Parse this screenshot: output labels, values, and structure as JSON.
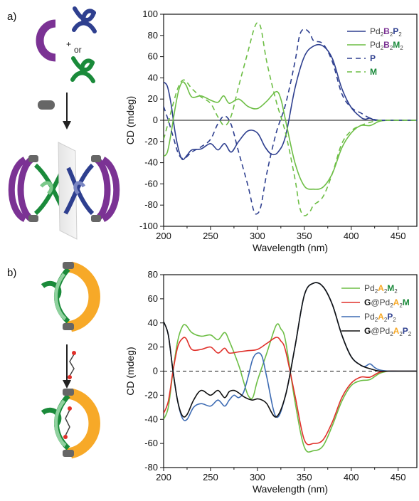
{
  "figure": {
    "panel_a": "a)",
    "panel_b": "b)",
    "schematic_or": "or",
    "schematic_plus": "+"
  },
  "colors": {
    "navy": "#2e3f8f",
    "green": "#6dbe45",
    "purple": "#7b3294",
    "dark_green": "#1a8a3a",
    "orange": "#f7a928",
    "red": "#e0302a",
    "blue": "#3d6bb3",
    "black": "#111111",
    "grey": "#888888"
  },
  "chart_data": [
    {
      "type": "line",
      "xlabel": "Wavelength (nm)",
      "ylabel": "CD (mdeg)",
      "xlim": [
        200,
        470
      ],
      "ylim": [
        -100,
        100
      ],
      "xticks": [
        200,
        250,
        300,
        350,
        400,
        450
      ],
      "yticks": [
        100,
        80,
        60,
        40,
        20,
        0,
        -20,
        -40,
        -60,
        -80,
        -100
      ],
      "zero_line": "solid",
      "legend": [
        {
          "parts": [
            [
              "Pd",
              "#444"
            ],
            [
              "2",
              "#444",
              "sub"
            ],
            [
              "B",
              "#7b3294",
              "bold"
            ],
            [
              "2",
              "#444",
              "sub"
            ],
            [
              "P",
              "#2e3f8f",
              "bold"
            ],
            [
              "2",
              "#444",
              "sub"
            ]
          ]
        },
        {
          "parts": [
            [
              "Pd",
              "#444"
            ],
            [
              "2",
              "#444",
              "sub"
            ],
            [
              "B",
              "#7b3294",
              "bold"
            ],
            [
              "2",
              "#444",
              "sub"
            ],
            [
              "M",
              "#1a8a3a",
              "bold"
            ],
            [
              "2",
              "#444",
              "sub"
            ]
          ]
        },
        {
          "parts": [
            [
              "P",
              "#2e3f8f",
              "bold"
            ]
          ]
        },
        {
          "parts": [
            [
              "M",
              "#1a8a3a",
              "bold"
            ]
          ]
        }
      ],
      "series": [
        {
          "color": "#2e3f8f",
          "dash": false,
          "x": [
            200,
            204,
            208,
            212,
            216,
            220,
            225,
            230,
            240,
            250,
            258,
            265,
            272,
            280,
            290,
            300,
            308,
            315,
            322,
            330,
            340,
            350,
            360,
            370,
            380,
            390,
            400,
            410,
            415,
            420,
            425,
            430,
            440,
            450,
            470
          ],
          "y": [
            36,
            32,
            15,
            -10,
            -28,
            -37,
            -33,
            -28,
            -27,
            -22,
            -28,
            -22,
            -30,
            -20,
            -10,
            -12,
            -25,
            -32,
            -30,
            -15,
            30,
            60,
            70,
            70,
            58,
            30,
            12,
            3,
            1,
            2,
            0,
            0,
            0,
            0,
            0
          ]
        },
        {
          "color": "#6dbe45",
          "dash": false,
          "x": [
            200,
            204,
            208,
            212,
            216,
            220,
            224,
            230,
            240,
            250,
            258,
            264,
            270,
            280,
            290,
            300,
            310,
            320,
            325,
            330,
            340,
            350,
            360,
            370,
            380,
            390,
            400,
            410,
            420,
            430,
            440,
            450,
            470
          ],
          "y": [
            -34,
            -30,
            -12,
            10,
            28,
            36,
            33,
            22,
            23,
            19,
            17,
            23,
            16,
            20,
            13,
            11,
            18,
            27,
            20,
            0,
            -40,
            -62,
            -65,
            -63,
            -50,
            -26,
            -12,
            -5,
            -5,
            -1,
            0,
            0,
            0
          ]
        },
        {
          "color": "#2e3f8f",
          "dash": true,
          "x": [
            200,
            205,
            210,
            216,
            222,
            230,
            240,
            250,
            258,
            265,
            272,
            280,
            290,
            296,
            300,
            304,
            310,
            320,
            330,
            340,
            345,
            350,
            356,
            360,
            370,
            380,
            390,
            400,
            410,
            420,
            430,
            440,
            450,
            470
          ],
          "y": [
            13,
            0,
            -15,
            -32,
            -36,
            -30,
            -25,
            -18,
            -3,
            4,
            -4,
            -30,
            -62,
            -85,
            -88,
            -80,
            -50,
            -12,
            15,
            55,
            80,
            86,
            82,
            75,
            72,
            55,
            25,
            12,
            7,
            2,
            0,
            0,
            0,
            0
          ]
        },
        {
          "color": "#6dbe45",
          "dash": true,
          "x": [
            200,
            205,
            210,
            216,
            222,
            230,
            240,
            250,
            258,
            265,
            272,
            280,
            290,
            296,
            300,
            304,
            310,
            320,
            330,
            340,
            345,
            350,
            356,
            360,
            370,
            380,
            390,
            400,
            410,
            420,
            430,
            440,
            450,
            470
          ],
          "y": [
            -18,
            -2,
            15,
            32,
            38,
            30,
            22,
            16,
            3,
            -5,
            4,
            32,
            65,
            85,
            92,
            86,
            55,
            18,
            -12,
            -55,
            -82,
            -90,
            -86,
            -80,
            -72,
            -50,
            -22,
            -10,
            -5,
            -2,
            0,
            0,
            0,
            0
          ]
        }
      ]
    },
    {
      "type": "line",
      "xlabel": "Wavelength (nm)",
      "ylabel": "CD (mdeg)",
      "xlim": [
        200,
        470
      ],
      "ylim": [
        -80,
        80
      ],
      "xticks": [
        200,
        250,
        300,
        350,
        400,
        450
      ],
      "yticks": [
        80,
        60,
        40,
        20,
        0,
        -20,
        -40,
        -60,
        -80
      ],
      "zero_line": "dashed",
      "legend": [
        {
          "parts": [
            [
              "Pd",
              "#444"
            ],
            [
              "2",
              "#444",
              "sub"
            ],
            [
              "A",
              "#f7a928",
              "bold"
            ],
            [
              "2",
              "#444",
              "sub"
            ],
            [
              "M",
              "#1a8a3a",
              "bold"
            ],
            [
              "2",
              "#444",
              "sub"
            ]
          ]
        },
        {
          "parts": [
            [
              "G",
              "#111",
              "bold"
            ],
            [
              "@Pd",
              "#444"
            ],
            [
              "2",
              "#444",
              "sub"
            ],
            [
              "A",
              "#f7a928",
              "bold"
            ],
            [
              "2",
              "#444",
              "sub"
            ],
            [
              "M",
              "#1a8a3a",
              "bold"
            ]
          ]
        },
        {
          "parts": [
            [
              "Pd",
              "#444"
            ],
            [
              "2",
              "#444",
              "sub"
            ],
            [
              "A",
              "#f7a928",
              "bold"
            ],
            [
              "2",
              "#444",
              "sub"
            ],
            [
              "P",
              "#2e3f8f",
              "bold"
            ],
            [
              "2",
              "#444",
              "sub"
            ]
          ]
        },
        {
          "parts": [
            [
              "G",
              "#111",
              "bold"
            ],
            [
              "@Pd",
              "#444"
            ],
            [
              "2",
              "#444",
              "sub"
            ],
            [
              "A",
              "#f7a928",
              "bold"
            ],
            [
              "2",
              "#444",
              "sub"
            ],
            [
              "P",
              "#2e3f8f",
              "bold"
            ],
            [
              "2",
              "#444",
              "sub"
            ]
          ]
        }
      ],
      "series": [
        {
          "color": "#6dbe45",
          "x": [
            200,
            205,
            210,
            215,
            220,
            224,
            230,
            240,
            250,
            258,
            265,
            270,
            280,
            285,
            290,
            295,
            300,
            310,
            320,
            325,
            330,
            340,
            350,
            360,
            370,
            380,
            390,
            400,
            410,
            420,
            430,
            440,
            450,
            470
          ],
          "y": [
            -40,
            -30,
            0,
            25,
            37,
            38,
            32,
            29,
            30,
            26,
            32,
            25,
            5,
            -8,
            -20,
            -22,
            -8,
            15,
            38,
            35,
            25,
            -25,
            -63,
            -66,
            -62,
            -45,
            -25,
            -12,
            -8,
            -7,
            -2,
            0,
            0,
            0
          ]
        },
        {
          "color": "#e0302a",
          "x": [
            200,
            205,
            210,
            215,
            220,
            224,
            230,
            240,
            250,
            258,
            265,
            270,
            280,
            290,
            300,
            310,
            320,
            325,
            330,
            340,
            350,
            360,
            370,
            380,
            390,
            400,
            410,
            420,
            430,
            440,
            450,
            470
          ],
          "y": [
            -35,
            -25,
            0,
            20,
            27,
            27,
            18,
            18,
            20,
            15,
            19,
            15,
            16,
            17,
            18,
            23,
            28,
            25,
            17,
            -20,
            -57,
            -60,
            -57,
            -42,
            -22,
            -10,
            -5,
            -5,
            -1,
            0,
            0,
            0
          ]
        },
        {
          "color": "#3d6bb3",
          "x": [
            200,
            205,
            210,
            215,
            220,
            225,
            232,
            240,
            250,
            258,
            265,
            270,
            275,
            280,
            285,
            290,
            295,
            300,
            305,
            310,
            320,
            330,
            340,
            350,
            360,
            370,
            380,
            390,
            400,
            410,
            415,
            420,
            425,
            430,
            440,
            450,
            470
          ],
          "y": [
            41,
            30,
            0,
            -25,
            -39,
            -40,
            -30,
            -27,
            -29,
            -24,
            -29,
            -24,
            -20,
            -22,
            -18,
            -5,
            10,
            15,
            12,
            -5,
            -38,
            -20,
            20,
            63,
            73,
            70,
            55,
            30,
            12,
            5,
            4,
            6,
            3,
            1,
            0,
            0,
            0
          ]
        },
        {
          "color": "#111111",
          "x": [
            200,
            205,
            210,
            215,
            220,
            225,
            232,
            240,
            250,
            258,
            265,
            270,
            275,
            280,
            285,
            290,
            295,
            300,
            305,
            310,
            320,
            330,
            340,
            350,
            360,
            370,
            380,
            390,
            400,
            410,
            420,
            430,
            440,
            450,
            470
          ],
          "y": [
            41,
            30,
            0,
            -25,
            -37,
            -36,
            -24,
            -16,
            -20,
            -16,
            -22,
            -17,
            -16,
            -18,
            -21,
            -23,
            -24,
            -23,
            -24,
            -27,
            -38,
            -20,
            20,
            63,
            73,
            70,
            55,
            30,
            12,
            5,
            2,
            0,
            0,
            0,
            0
          ]
        }
      ]
    }
  ]
}
